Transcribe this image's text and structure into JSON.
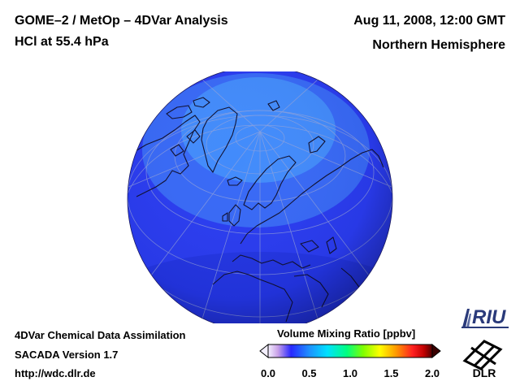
{
  "header": {
    "title_line1": "GOME–2 / MetOp – 4DVar Analysis",
    "title_line2": "HCl at 55.4 hPa",
    "date": "Aug 11, 2008, 12:00 GMT",
    "region": "Northern Hemisphere"
  },
  "footer": {
    "line1": "4DVar Chemical Data Assimilation",
    "line2": "SACADA Version 1.7",
    "line3": "http://wdc.dlr.de"
  },
  "colorbar": {
    "title": "Volume Mixing Ratio [ppbv]",
    "ticks": [
      "0.0",
      "0.5",
      "1.0",
      "1.5",
      "2.0"
    ],
    "tick_values": [
      0.0,
      0.5,
      1.0,
      1.5,
      2.0
    ],
    "range": [
      0.0,
      2.0
    ],
    "colors": [
      "#f4f0ff",
      "#c8a0e8",
      "#2828ff",
      "#1e90ff",
      "#00e0ff",
      "#00ff80",
      "#80ff00",
      "#ffff00",
      "#ff9900",
      "#ff2020",
      "#c00000",
      "#500000"
    ]
  },
  "map": {
    "projection": "orthographic",
    "field": "HCl volume mixing ratio",
    "field_color_low": "#2a3cf0",
    "field_color_mid": "#3a6ef6",
    "field_color_high": "#4aa8ff"
  },
  "logos": {
    "riu_text": "RIU",
    "dlr_text": "DLR"
  }
}
